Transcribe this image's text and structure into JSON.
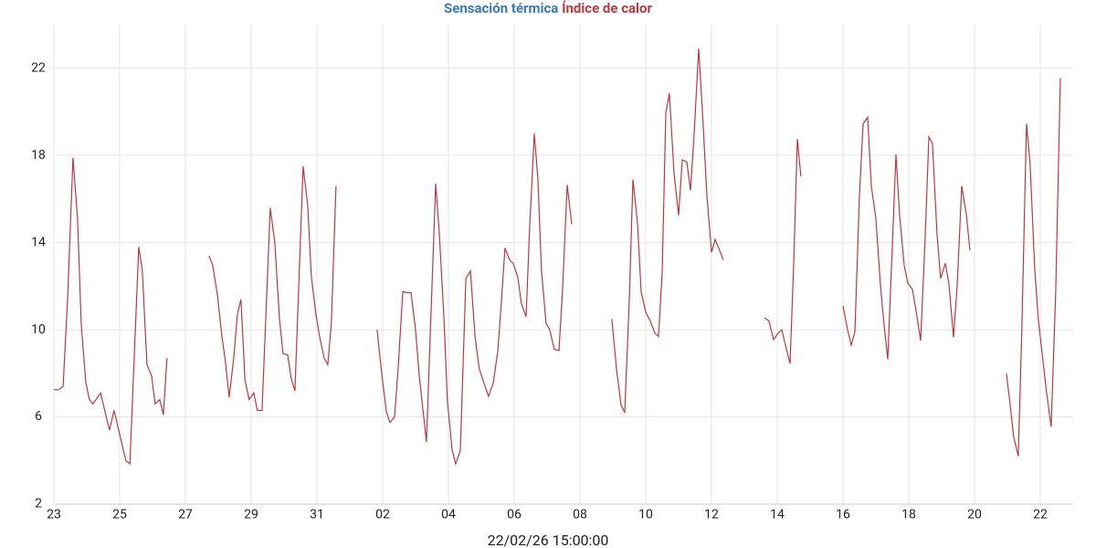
{
  "chart_data": {
    "type": "line",
    "series": [
      {
        "name": "Sensación térmica",
        "color": "#3a7ab5"
      },
      {
        "name": "Índice de calor",
        "color": "#b83a3f",
        "x": [
          0,
          0.14,
          0.28,
          0.42,
          0.58,
          0.72,
          0.83,
          0.97,
          1.08,
          1.19,
          1.42,
          1.69,
          1.83,
          2.0,
          2.19,
          2.31,
          2.58,
          2.69,
          2.83,
          2.97,
          3.08,
          3.22,
          3.33,
          3.44,
          4.0,
          4.72,
          4.83,
          4.97,
          5.11,
          5.22,
          5.33,
          5.47,
          5.58,
          5.69,
          5.81,
          5.94,
          6.08,
          6.19,
          6.33,
          6.58,
          6.72,
          6.86,
          6.97,
          7.11,
          7.22,
          7.33,
          7.58,
          7.72,
          7.83,
          7.97,
          8.08,
          8.22,
          8.33,
          8.44,
          8.58,
          9.0,
          9.83,
          9.97,
          10.11,
          10.22,
          10.36,
          10.47,
          10.61,
          10.75,
          10.86,
          11.0,
          11.11,
          11.33,
          11.61,
          11.72,
          11.86,
          11.97,
          12.11,
          12.22,
          12.36,
          12.53,
          12.67,
          12.81,
          12.94,
          13.08,
          13.22,
          13.36,
          13.5,
          13.61,
          13.72,
          13.86,
          13.97,
          14.11,
          14.22,
          14.36,
          14.47,
          14.61,
          14.72,
          14.83,
          14.97,
          15.08,
          15.22,
          15.36,
          15.47,
          15.61,
          15.75,
          16.0,
          16.97,
          17.11,
          17.25,
          17.36,
          17.5,
          17.61,
          17.75,
          17.86,
          18.0,
          18.14,
          18.28,
          18.39,
          18.5,
          18.61,
          18.72,
          18.86,
          19.0,
          19.11,
          19.25,
          19.36,
          19.47,
          19.61,
          19.72,
          19.86,
          20.0,
          20.11,
          20.22,
          20.36,
          21.0,
          21.61,
          21.75,
          21.89,
          22.03,
          22.14,
          22.28,
          22.39,
          22.5,
          22.61,
          22.72,
          23.0,
          24.0,
          24.14,
          24.25,
          24.36,
          24.5,
          24.61,
          24.75,
          24.86,
          25.0,
          25.14,
          25.25,
          25.36,
          25.5,
          25.61,
          25.72,
          25.86,
          25.97,
          26.11,
          26.22,
          26.36,
          26.5,
          26.61,
          26.72,
          26.86,
          26.97,
          27.11,
          27.22,
          27.36,
          27.47,
          27.61,
          27.75,
          27.86,
          28.5,
          28.97,
          29.08,
          29.19,
          29.33,
          29.44,
          29.58,
          29.69,
          29.83,
          29.94,
          30.08,
          30.19,
          30.33,
          30.47,
          30.61
        ],
        "values": [
          7.25,
          7.25,
          7.4,
          11.5,
          17.9,
          15.1,
          10.3,
          7.6,
          6.8,
          6.6,
          7.1,
          5.4,
          6.3,
          5.2,
          4.0,
          3.85,
          13.8,
          12.75,
          8.4,
          7.9,
          6.6,
          6.8,
          6.1,
          8.7,
          null,
          13.4,
          12.95,
          11.65,
          9.7,
          8.5,
          6.9,
          8.7,
          10.7,
          11.4,
          7.7,
          6.8,
          7.1,
          6.3,
          6.3,
          15.6,
          14.0,
          10.5,
          8.9,
          8.85,
          7.75,
          7.2,
          17.5,
          15.7,
          12.45,
          10.7,
          9.7,
          8.7,
          8.4,
          10.3,
          16.6,
          null,
          10.0,
          8.0,
          6.25,
          5.75,
          6.0,
          8.2,
          11.75,
          11.7,
          11.7,
          10.0,
          7.9,
          4.85,
          16.7,
          14.5,
          10.6,
          6.7,
          4.5,
          3.85,
          4.45,
          12.35,
          12.7,
          9.65,
          8.2,
          7.55,
          6.95,
          7.55,
          9.0,
          11.3,
          13.75,
          13.2,
          13.05,
          12.4,
          11.2,
          10.6,
          14.7,
          19.0,
          16.95,
          12.7,
          10.3,
          10.0,
          9.1,
          9.05,
          11.8,
          16.65,
          14.85,
          null,
          10.5,
          8.2,
          6.55,
          6.2,
          11.35,
          16.9,
          14.9,
          11.75,
          10.8,
          10.4,
          9.85,
          9.7,
          12.6,
          19.95,
          20.85,
          17.2,
          15.25,
          17.8,
          17.7,
          16.4,
          18.9,
          22.9,
          20.15,
          16.15,
          13.55,
          14.15,
          13.75,
          13.2,
          null,
          10.55,
          10.4,
          9.55,
          9.85,
          10.0,
          9.1,
          8.45,
          13.0,
          18.75,
          17.05,
          null,
          11.1,
          10.0,
          9.3,
          9.9,
          16.15,
          19.45,
          19.75,
          16.6,
          15.1,
          12.05,
          10.2,
          8.65,
          13.85,
          18.05,
          15.3,
          12.95,
          12.15,
          11.85,
          10.9,
          9.5,
          14.25,
          18.85,
          18.55,
          14.35,
          12.35,
          13.05,
          12.15,
          9.65,
          11.95,
          16.6,
          15.3,
          13.65,
          null,
          8.0,
          6.6,
          5.1,
          4.2,
          10.05,
          19.45,
          17.65,
          12.8,
          10.5,
          8.6,
          7.15,
          5.55,
          11.75,
          21.55
        ]
      }
    ],
    "xlim": [
      0,
      31
    ],
    "xticks": [
      {
        "value": 0,
        "label": "23"
      },
      {
        "value": 2,
        "label": "25"
      },
      {
        "value": 4,
        "label": "27"
      },
      {
        "value": 6,
        "label": "29"
      },
      {
        "value": 8,
        "label": "31"
      },
      {
        "value": 10,
        "label": "02"
      },
      {
        "value": 12,
        "label": "04"
      },
      {
        "value": 14,
        "label": "06"
      },
      {
        "value": 16,
        "label": "08"
      },
      {
        "value": 18,
        "label": "10"
      },
      {
        "value": 20,
        "label": "12"
      },
      {
        "value": 22,
        "label": "14"
      },
      {
        "value": 24,
        "label": "16"
      },
      {
        "value": 26,
        "label": "18"
      },
      {
        "value": 28,
        "label": "20"
      },
      {
        "value": 30,
        "label": "22"
      }
    ],
    "ylim": [
      2,
      24
    ],
    "yticks": [
      2,
      6,
      10,
      14,
      18,
      22
    ],
    "grid": true,
    "x_label": "22/02/26 15:00:00"
  }
}
